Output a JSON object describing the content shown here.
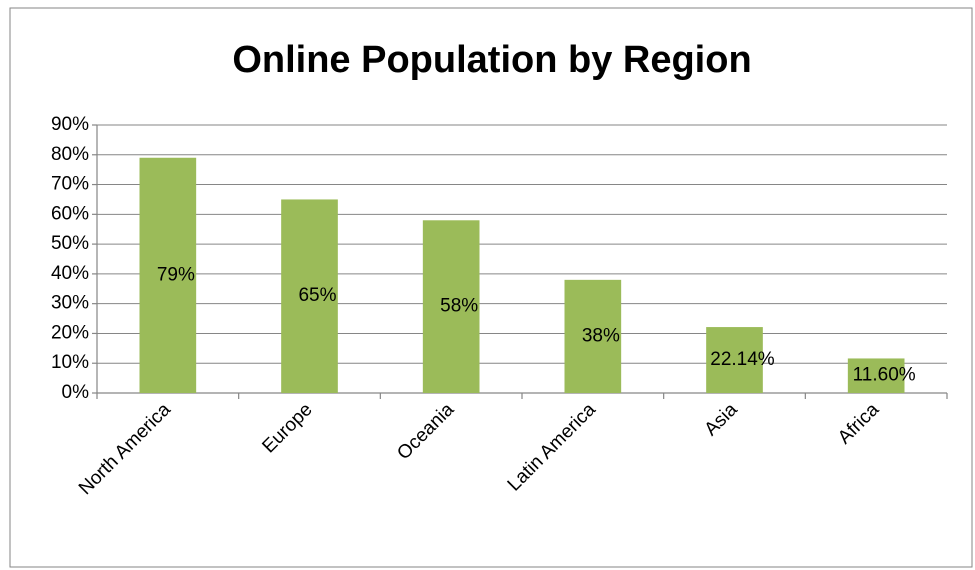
{
  "chart_data": {
    "type": "bar",
    "title": "Online Population by Region",
    "categories": [
      "North America",
      "Europe",
      "Oceania",
      "Latin America",
      "Asia",
      "Africa"
    ],
    "values": [
      79,
      65,
      58,
      38,
      22.14,
      11.6
    ],
    "value_labels": [
      "79%",
      "65%",
      "58%",
      "38%",
      "22.14%",
      "11.60%"
    ],
    "color": "#9bbb59",
    "ylim": [
      0,
      90
    ],
    "yticks": [
      {
        "value": 0,
        "label": "0%"
      },
      {
        "value": 10,
        "label": "10%"
      },
      {
        "value": 20,
        "label": "20%"
      },
      {
        "value": 30,
        "label": "30%"
      },
      {
        "value": 40,
        "label": "40%"
      },
      {
        "value": 50,
        "label": "50%"
      },
      {
        "value": 60,
        "label": "60%"
      },
      {
        "value": 70,
        "label": "70%"
      },
      {
        "value": 80,
        "label": "80%"
      },
      {
        "value": 90,
        "label": "90%"
      }
    ],
    "grid": true
  }
}
